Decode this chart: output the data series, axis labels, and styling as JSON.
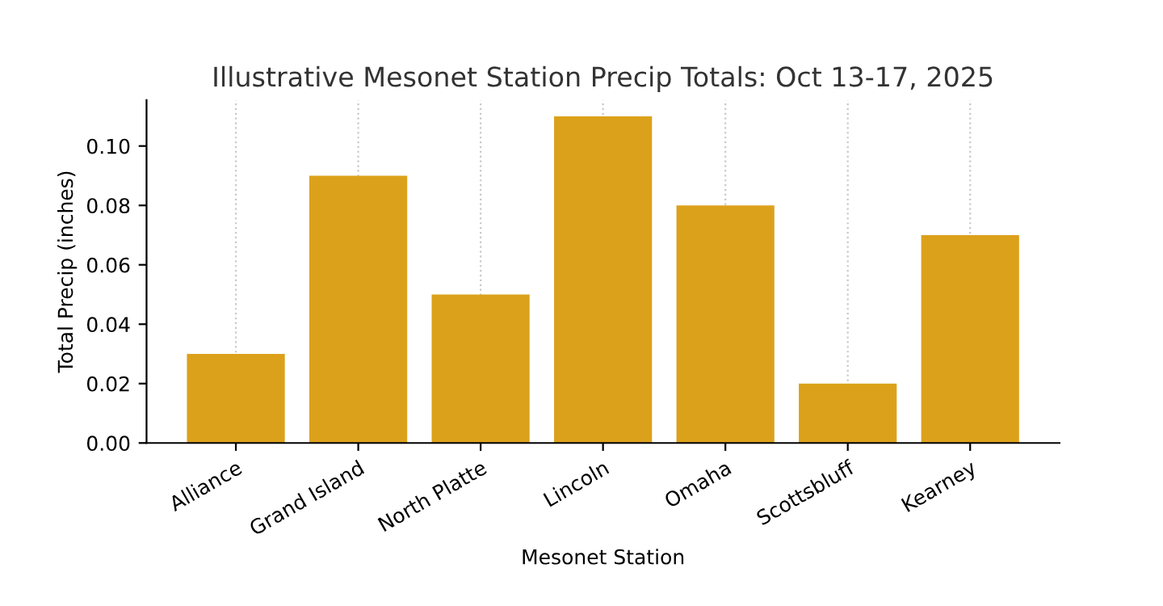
{
  "chart_data": {
    "type": "bar",
    "title": "Illustrative Mesonet Station Precip Totals: Oct 13-17, 2025",
    "xlabel": "Mesonet Station",
    "ylabel": "Total Precip (inches)",
    "categories": [
      "Alliance",
      "Grand Island",
      "North Platte",
      "Lincoln",
      "Omaha",
      "Scottsbluff",
      "Kearney"
    ],
    "values": [
      0.03,
      0.09,
      0.05,
      0.11,
      0.08,
      0.02,
      0.07
    ],
    "color": "#dca11b",
    "ylim": [
      0,
      0.1155
    ],
    "yticks": [
      {
        "value": 0,
        "label": "0.00"
      },
      {
        "value": 0.02,
        "label": "0.02"
      },
      {
        "value": 0.04,
        "label": "0.04"
      },
      {
        "value": 0.06,
        "label": "0.06"
      },
      {
        "value": 0.08,
        "label": "0.08"
      },
      {
        "value": 0.1,
        "label": "0.10"
      }
    ],
    "grid": "x"
  }
}
